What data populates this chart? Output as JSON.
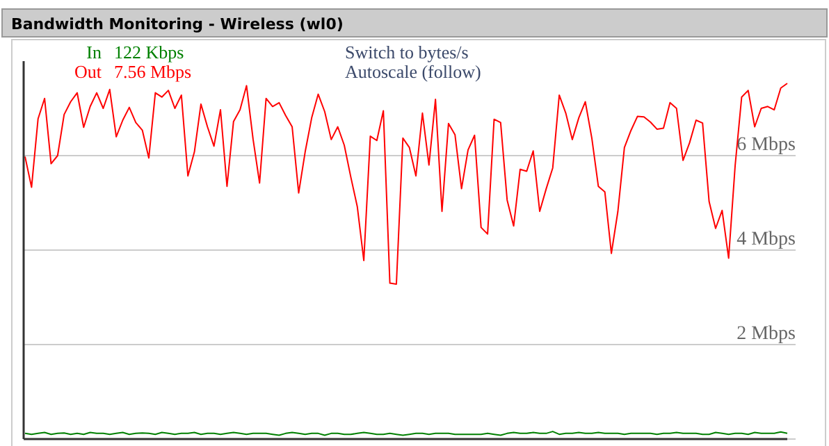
{
  "chart_data": {
    "type": "line",
    "title": "Bandwidth Monitoring - Wireless (wl0)",
    "categories": [
      null,
      null,
      null,
      null,
      null,
      null,
      null,
      null,
      null,
      null,
      null,
      null,
      null,
      null,
      null,
      null,
      null,
      null,
      null,
      null,
      null,
      null,
      null,
      null,
      null,
      null,
      null,
      null,
      null,
      null,
      null,
      null,
      null,
      null,
      null,
      null,
      null,
      null,
      null,
      null,
      null,
      null,
      null,
      null,
      null,
      null,
      null,
      null,
      null,
      null,
      null,
      null,
      null,
      null,
      null,
      null,
      null,
      null,
      null,
      null,
      null,
      null,
      null,
      null,
      null,
      null,
      null,
      null,
      null,
      null,
      null,
      null,
      null,
      null,
      null,
      null,
      null,
      null,
      null,
      null,
      null,
      null,
      null,
      null,
      null,
      null,
      null,
      null,
      null,
      null,
      null,
      null,
      null,
      null,
      null,
      null,
      null,
      null,
      null,
      null,
      null,
      null,
      null,
      null,
      null,
      null,
      null,
      null,
      null,
      null,
      null,
      null,
      null,
      null,
      null,
      null,
      null,
      null
    ],
    "series": [
      {
        "name": "In",
        "color": "#008000",
        "values": [
          0.12,
          0.1,
          0.12,
          0.14,
          0.1,
          0.12,
          0.13,
          0.1,
          0.12,
          0.1,
          0.14,
          0.12,
          0.12,
          0.1,
          0.12,
          0.14,
          0.1,
          0.12,
          0.13,
          0.12,
          0.1,
          0.14,
          0.12,
          0.1,
          0.12,
          0.12,
          0.14,
          0.1,
          0.12,
          0.12,
          0.1,
          0.12,
          0.14,
          0.12,
          0.1,
          0.12,
          0.12,
          0.12,
          0.1,
          0.08,
          0.12,
          0.14,
          0.12,
          0.1,
          0.12,
          0.12,
          0.08,
          0.12,
          0.12,
          0.1,
          0.1,
          0.12,
          0.14,
          0.12,
          0.1,
          0.1,
          0.12,
          0.1,
          0.08,
          0.1,
          0.12,
          0.12,
          0.1,
          0.12,
          0.12,
          0.12,
          0.1,
          0.1,
          0.1,
          0.1,
          0.1,
          0.12,
          0.1,
          0.08,
          0.12,
          0.14,
          0.12,
          0.12,
          0.14,
          0.12,
          0.12,
          0.16,
          0.1,
          0.12,
          0.12,
          0.14,
          0.12,
          0.12,
          0.14,
          0.12,
          0.12,
          0.12,
          0.1,
          0.12,
          0.12,
          0.12,
          0.12,
          0.1,
          0.12,
          0.12,
          0.14,
          0.12,
          0.12,
          0.12,
          0.1,
          0.1,
          0.14,
          0.12,
          0.1,
          0.12,
          0.12,
          0.1,
          0.14,
          0.12,
          0.12,
          0.12,
          0.15,
          0.12
        ]
      },
      {
        "name": "Out",
        "color": "#ff0000",
        "values": [
          5.98,
          5.33,
          6.78,
          7.21,
          5.83,
          6.0,
          6.87,
          7.14,
          7.33,
          6.6,
          7.04,
          7.33,
          7.0,
          7.4,
          6.4,
          6.75,
          7.02,
          6.7,
          6.54,
          5.95,
          7.33,
          7.24,
          7.38,
          7.0,
          7.28,
          5.57,
          6.08,
          7.09,
          6.61,
          6.2,
          6.97,
          5.35,
          6.72,
          6.97,
          7.48,
          6.35,
          5.42,
          7.21,
          7.04,
          7.12,
          6.85,
          6.61,
          5.21,
          6.08,
          6.8,
          7.3,
          6.93,
          6.34,
          6.61,
          6.22,
          5.55,
          4.92,
          3.78,
          6.41,
          6.32,
          6.95,
          3.3,
          3.28,
          6.37,
          6.17,
          5.57,
          6.9,
          5.8,
          7.19,
          4.82,
          6.68,
          6.44,
          5.3,
          6.12,
          6.43,
          4.48,
          4.34,
          6.77,
          6.7,
          5.06,
          4.51,
          5.71,
          5.67,
          6.1,
          4.82,
          5.3,
          5.74,
          7.28,
          6.9,
          6.34,
          6.8,
          7.14,
          6.37,
          5.35,
          5.23,
          3.93,
          4.82,
          6.17,
          6.53,
          6.83,
          6.82,
          6.71,
          6.56,
          6.58,
          7.12,
          7.0,
          5.9,
          6.27,
          6.75,
          6.69,
          5.03,
          4.46,
          4.84,
          3.83,
          5.79,
          7.24,
          7.38,
          6.61,
          7.0,
          7.04,
          6.97,
          7.43,
          7.53
        ]
      }
    ],
    "ylim": [
      0,
      8
    ],
    "yticks": [
      {
        "value": 0,
        "label": null
      },
      {
        "value": 2,
        "label": "2 Mbps"
      },
      {
        "value": 4,
        "label": "4 Mbps"
      },
      {
        "value": 6,
        "label": "6 Mbps"
      }
    ],
    "grid": "y",
    "legend": "top left",
    "marker": "none",
    "line_style": "solid",
    "annotations": [
      "122 Kbps",
      "7.56 Mbps",
      "Switch to bytes/s",
      "Autoscale (follow)"
    ]
  }
}
